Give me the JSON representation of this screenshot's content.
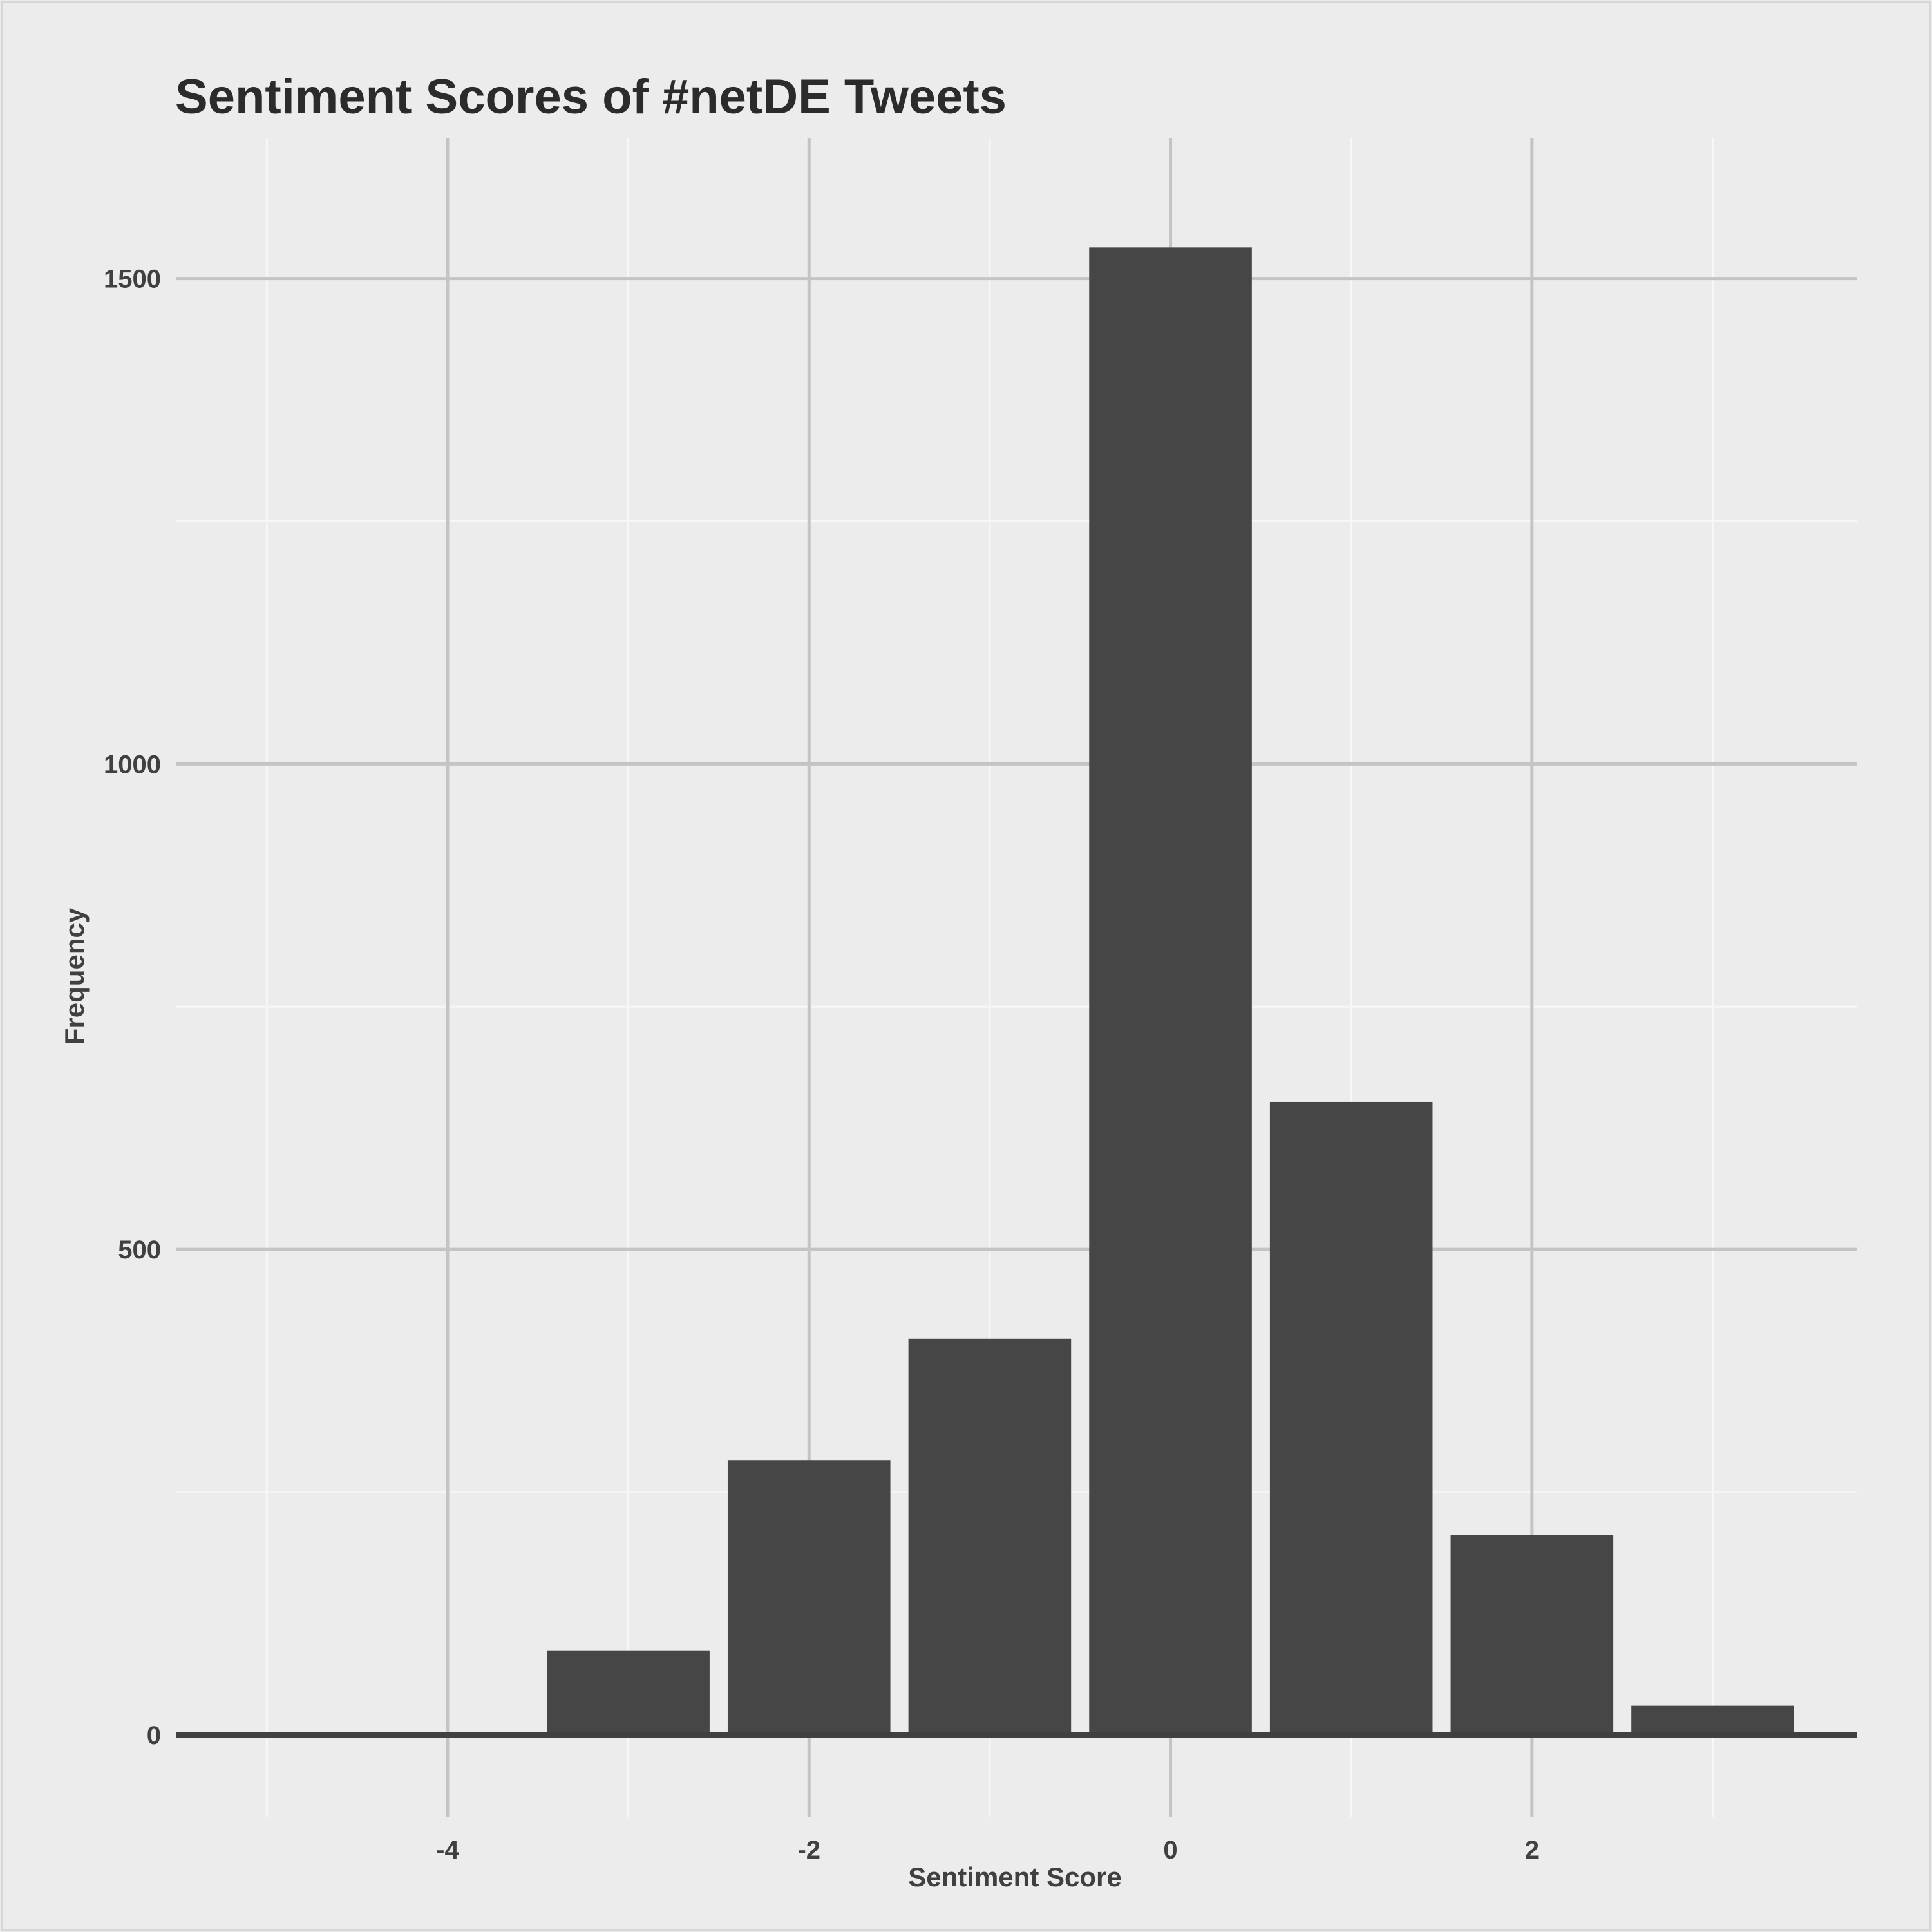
{
  "chart_data": {
    "type": "bar",
    "title": "Sentiment Scores of #netDE Tweets",
    "xlabel": "Sentiment Score",
    "ylabel": "Frequency",
    "x": [
      -5,
      -4,
      -3,
      -2,
      -1,
      0,
      1,
      2,
      3
    ],
    "values": [
      2,
      2,
      87,
      283,
      408,
      1532,
      652,
      206,
      30
    ],
    "xlim": [
      -5.5,
      3.8
    ],
    "ylim": [
      -85,
      1645
    ],
    "x_ticks": [
      -4,
      -2,
      0,
      2
    ],
    "x_tick_labels": [
      "-4",
      "-2",
      "0",
      "2"
    ],
    "x_minor_ticks": [
      -5,
      -3,
      -1,
      1,
      3
    ],
    "y_ticks": [
      0,
      500,
      1000,
      1500
    ],
    "y_tick_labels": [
      "0",
      "500",
      "1000",
      "1500"
    ],
    "y_minor_ticks": [
      250,
      750,
      1250
    ],
    "bar_width": 0.9,
    "grid": true,
    "legend": "none",
    "colors": {
      "background": "#ececec",
      "bar": "#464646",
      "grid_major": "#c4c4c4",
      "grid_minor": "#f7f7f7",
      "baseline": "#404040",
      "text": "#2b2b2b"
    }
  }
}
